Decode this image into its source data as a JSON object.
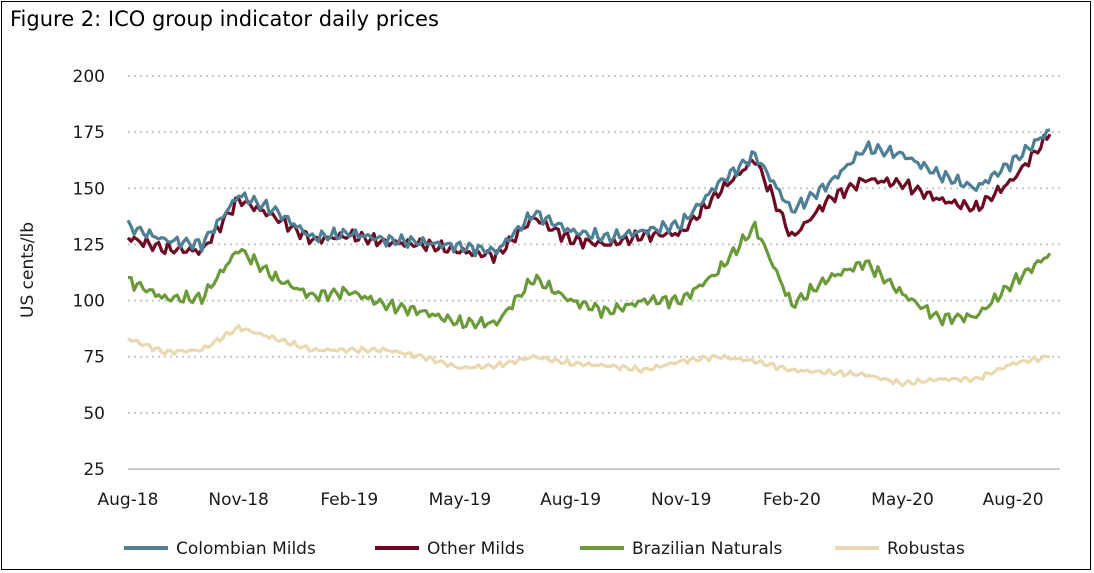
{
  "figure": {
    "title": "Figure 2: ICO group indicator daily prices"
  },
  "chart_data": {
    "type": "line",
    "title": "Figure 2: ICO group indicator daily prices",
    "xlabel": "",
    "ylabel": "US cents/lb",
    "ylim": [
      25,
      200
    ],
    "yticks": [
      25,
      50,
      75,
      100,
      125,
      150,
      175,
      200
    ],
    "grid": "horizontal-dotted",
    "legend_position": "bottom",
    "x_ticks": [
      "Aug-18",
      "Nov-18",
      "Feb-19",
      "May-19",
      "Aug-19",
      "Nov-19",
      "Feb-20",
      "May-20",
      "Aug-20"
    ],
    "x": [
      "Aug-18",
      "Sep-18",
      "Oct-18",
      "Nov-18",
      "Dec-18",
      "Jan-19",
      "Feb-19",
      "Mar-19",
      "Apr-19",
      "May-19",
      "Jun-19",
      "Jul-19",
      "Aug-19",
      "Sep-19",
      "Oct-19",
      "Nov-19",
      "Dec-19",
      "Jan-20",
      "Feb-20",
      "Mar-20",
      "Apr-20",
      "May-20",
      "Jun-20",
      "Jul-20",
      "Aug-20",
      "Sep-20"
    ],
    "series": [
      {
        "name": "Colombian Milds",
        "color": "#4f7f95",
        "values": [
          133,
          127,
          125,
          147,
          140,
          128,
          130,
          127,
          126,
          124,
          122,
          139,
          131,
          128,
          131,
          134,
          152,
          165,
          140,
          152,
          168,
          165,
          156,
          150,
          162,
          176
        ]
      },
      {
        "name": "Other Milds",
        "color": "#6b0a22",
        "values": [
          128,
          123,
          122,
          145,
          137,
          127,
          129,
          126,
          125,
          122,
          120,
          137,
          127,
          125,
          129,
          130,
          148,
          163,
          128,
          145,
          154,
          152,
          145,
          141,
          154,
          174
        ]
      },
      {
        "name": "Brazilian Naturals",
        "color": "#6a9a3a",
        "values": [
          109,
          101,
          101,
          123,
          110,
          102,
          104,
          98,
          95,
          90,
          90,
          110,
          100,
          95,
          100,
          100,
          113,
          133,
          98,
          110,
          117,
          103,
          92,
          93,
          108,
          121
        ]
      },
      {
        "name": "Robustas",
        "color": "#ead9b0",
        "values": [
          83,
          77,
          78,
          88,
          83,
          78,
          78,
          78,
          75,
          70,
          71,
          75,
          72,
          71,
          69,
          73,
          75,
          73,
          69,
          68,
          67,
          63,
          65,
          65,
          72,
          75
        ]
      }
    ]
  }
}
